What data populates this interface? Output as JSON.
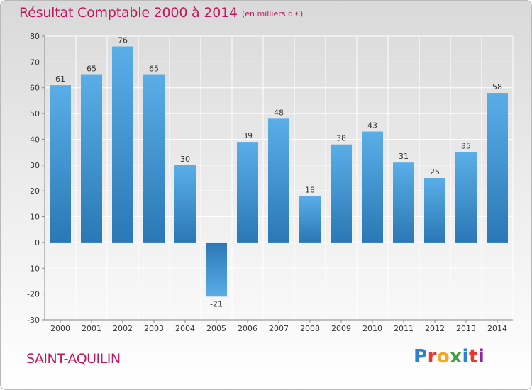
{
  "header": {
    "title": "Résultat Comptable 2000 à 2014",
    "subtitle": "(en milliers d'€)"
  },
  "footer": {
    "place": "SAINT-AQUILIN",
    "logo_text": "Proxiti",
    "logo_colors": [
      "#2e7fd6",
      "#e53935",
      "#f5a623",
      "#43a047",
      "#2e7fd6",
      "#e53935",
      "#8e24aa"
    ]
  },
  "colors": {
    "bar_light": "#5aaee8",
    "bar_dark": "#2a78b5",
    "grid": "#ffffff",
    "accent": "#c2185b"
  },
  "chart_data": {
    "type": "bar",
    "categories": [
      "2000",
      "2001",
      "2002",
      "2003",
      "2004",
      "2005",
      "2006",
      "2007",
      "2008",
      "2009",
      "2010",
      "2011",
      "2012",
      "2013",
      "2014"
    ],
    "values": [
      61,
      65,
      76,
      65,
      30,
      -21,
      39,
      48,
      18,
      38,
      43,
      31,
      25,
      35,
      58
    ],
    "title": "Résultat Comptable 2000 à 2014",
    "ylim": [
      -30,
      80
    ],
    "yticks": [
      -30,
      -20,
      -10,
      0,
      10,
      20,
      30,
      40,
      50,
      60,
      70,
      80
    ],
    "grid": true
  }
}
